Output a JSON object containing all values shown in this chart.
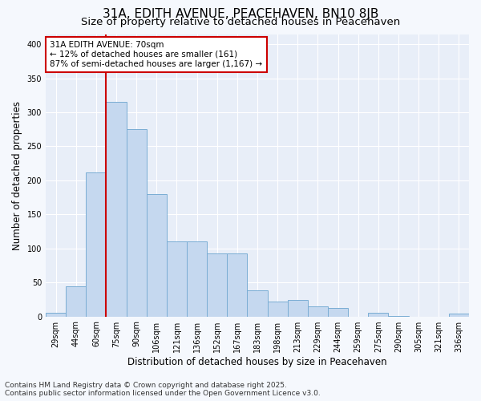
{
  "title": "31A, EDITH AVENUE, PEACEHAVEN, BN10 8JB",
  "subtitle": "Size of property relative to detached houses in Peacehaven",
  "xlabel": "Distribution of detached houses by size in Peacehaven",
  "ylabel": "Number of detached properties",
  "categories": [
    "29sqm",
    "44sqm",
    "60sqm",
    "75sqm",
    "90sqm",
    "106sqm",
    "121sqm",
    "136sqm",
    "152sqm",
    "167sqm",
    "183sqm",
    "198sqm",
    "213sqm",
    "229sqm",
    "244sqm",
    "259sqm",
    "275sqm",
    "290sqm",
    "305sqm",
    "321sqm",
    "336sqm"
  ],
  "values": [
    5,
    44,
    212,
    315,
    275,
    180,
    110,
    110,
    93,
    93,
    38,
    22,
    24,
    15,
    12,
    0,
    5,
    1,
    0,
    0,
    4
  ],
  "bar_color": "#c5d8ef",
  "bar_edge_color": "#7aadd4",
  "vline_index": 2.5,
  "annotation_title": "31A EDITH AVENUE: 70sqm",
  "annotation_line1": "← 12% of detached houses are smaller (161)",
  "annotation_line2": "87% of semi-detached houses are larger (1,167) →",
  "annotation_box_facecolor": "#ffffff",
  "annotation_box_edgecolor": "#cc0000",
  "vline_color": "#cc0000",
  "ylim": [
    0,
    415
  ],
  "yticks": [
    0,
    50,
    100,
    150,
    200,
    250,
    300,
    350,
    400
  ],
  "fig_facecolor": "#f5f8fd",
  "ax_facecolor": "#e8eef8",
  "grid_color": "#ffffff",
  "title_fontsize": 11,
  "subtitle_fontsize": 9.5,
  "tick_fontsize": 7,
  "ylabel_fontsize": 8.5,
  "xlabel_fontsize": 8.5,
  "annotation_fontsize": 7.5,
  "footer_fontsize": 6.5,
  "footer_line1": "Contains HM Land Registry data © Crown copyright and database right 2025.",
  "footer_line2": "Contains public sector information licensed under the Open Government Licence v3.0."
}
